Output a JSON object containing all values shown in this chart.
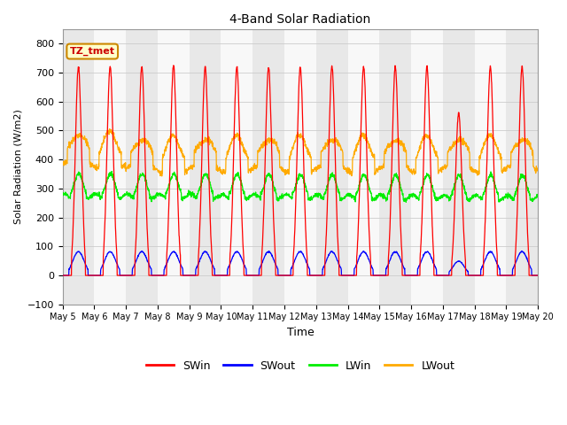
{
  "title": "4-Band Solar Radiation",
  "xlabel": "Time",
  "ylabel": "Solar Radiation (W/m2)",
  "ylim": [
    -100,
    850
  ],
  "annotation_text": "TZ_tmet",
  "annotation_color": "#cc0000",
  "annotation_bg": "#ffffcc",
  "annotation_border": "#cc8800",
  "colors": {
    "SWin": "#ff0000",
    "SWout": "#0000ff",
    "LWin": "#00ee00",
    "LWout": "#ffaa00"
  },
  "legend_entries": [
    "SWin",
    "SWout",
    "LWin",
    "LWout"
  ],
  "num_days": 15,
  "bg_color": "#ffffff",
  "plot_bg": "#ffffff",
  "grid_color": "#cccccc",
  "band_colors": [
    "#e8e8e8",
    "#f8f8f8"
  ],
  "tick_labels": [
    "May 5",
    "May 6",
    "May 7",
    "May 8",
    "May 9",
    "May 10",
    "May 11",
    "May 12",
    "May 13",
    "May 14",
    "May 15",
    "May 16",
    "May 17",
    "May 18",
    "May 19",
    "May 20"
  ],
  "figsize": [
    6.4,
    4.8
  ],
  "dpi": 100
}
